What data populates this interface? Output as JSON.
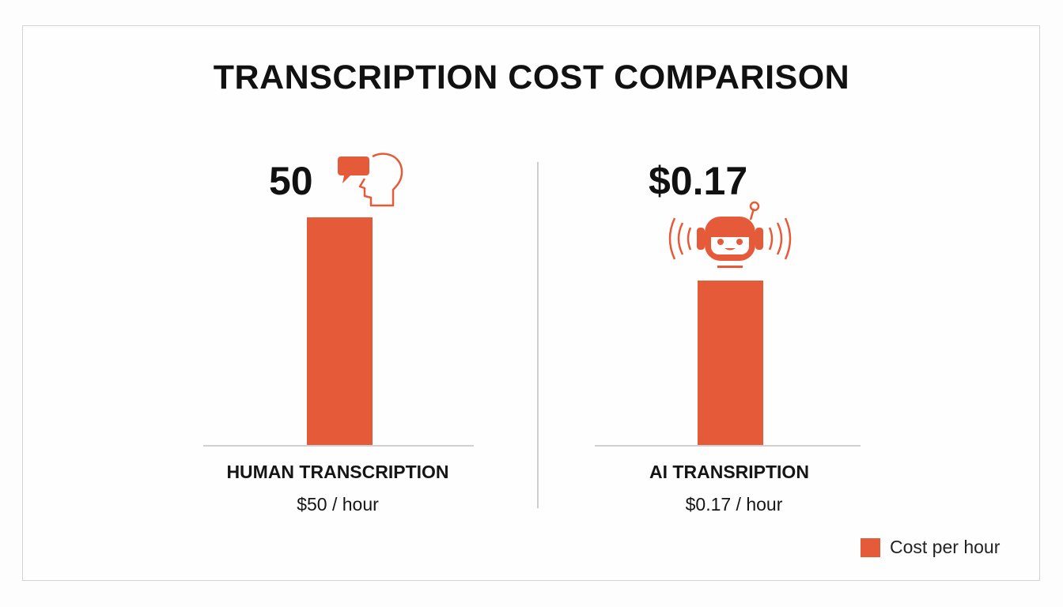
{
  "chart_data": {
    "type": "bar",
    "title": "TRANSCRIPTION COST COMPARISON",
    "categories": [
      "HUMAN TRANSCRIPTION",
      "AI TRANSRIPTION"
    ],
    "series": [
      {
        "name": "Cost per hour",
        "values": [
          50,
          0.17
        ]
      }
    ],
    "value_labels": [
      "50",
      "$0.17"
    ],
    "sublabels": [
      "$50 / hour",
      "$0.17 / hour"
    ],
    "legend": {
      "label": "Cost per hour",
      "position": "bottom-right"
    },
    "grid": false,
    "colors": {
      "bar": "#e55a38"
    },
    "icons": [
      "human-head-speech-bubble-icon",
      "robot-headphones-icon"
    ]
  }
}
